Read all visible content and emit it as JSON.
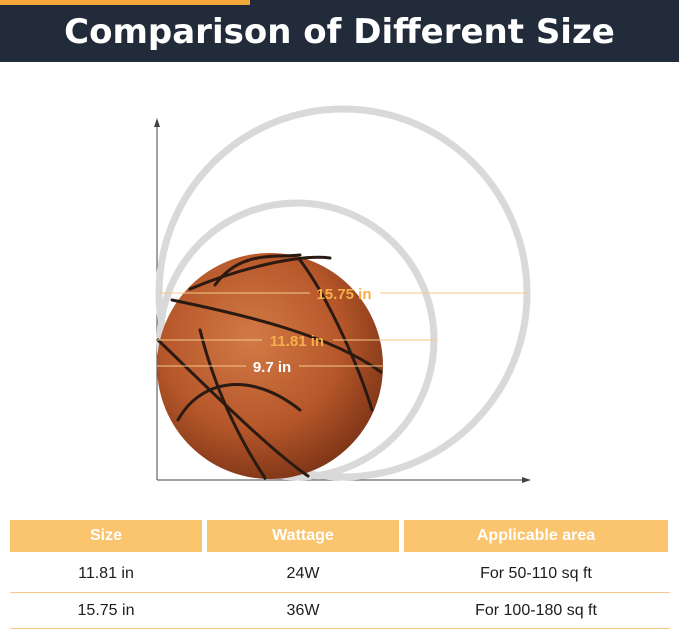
{
  "header": {
    "title": "Comparison of Different Size"
  },
  "diagram": {
    "labels": [
      "15.75 in",
      "11.81 in",
      "9.7 in"
    ],
    "colors": {
      "ring": "#d9d9d9",
      "guide": "#f5c98a",
      "label": "#f6b04a",
      "ball": "#bb5a2c"
    }
  },
  "table": {
    "headers": [
      "Size",
      "Wattage",
      "Applicable area"
    ],
    "rows": [
      [
        "11.81 in",
        "24W",
        "For 50-110 sq ft"
      ],
      [
        "15.75 in",
        "36W",
        "For 100-180 sq ft"
      ]
    ],
    "colors": {
      "header_bg": "#fbc46f",
      "header_text": "#ffffff",
      "divider": "#f6c98a"
    }
  }
}
